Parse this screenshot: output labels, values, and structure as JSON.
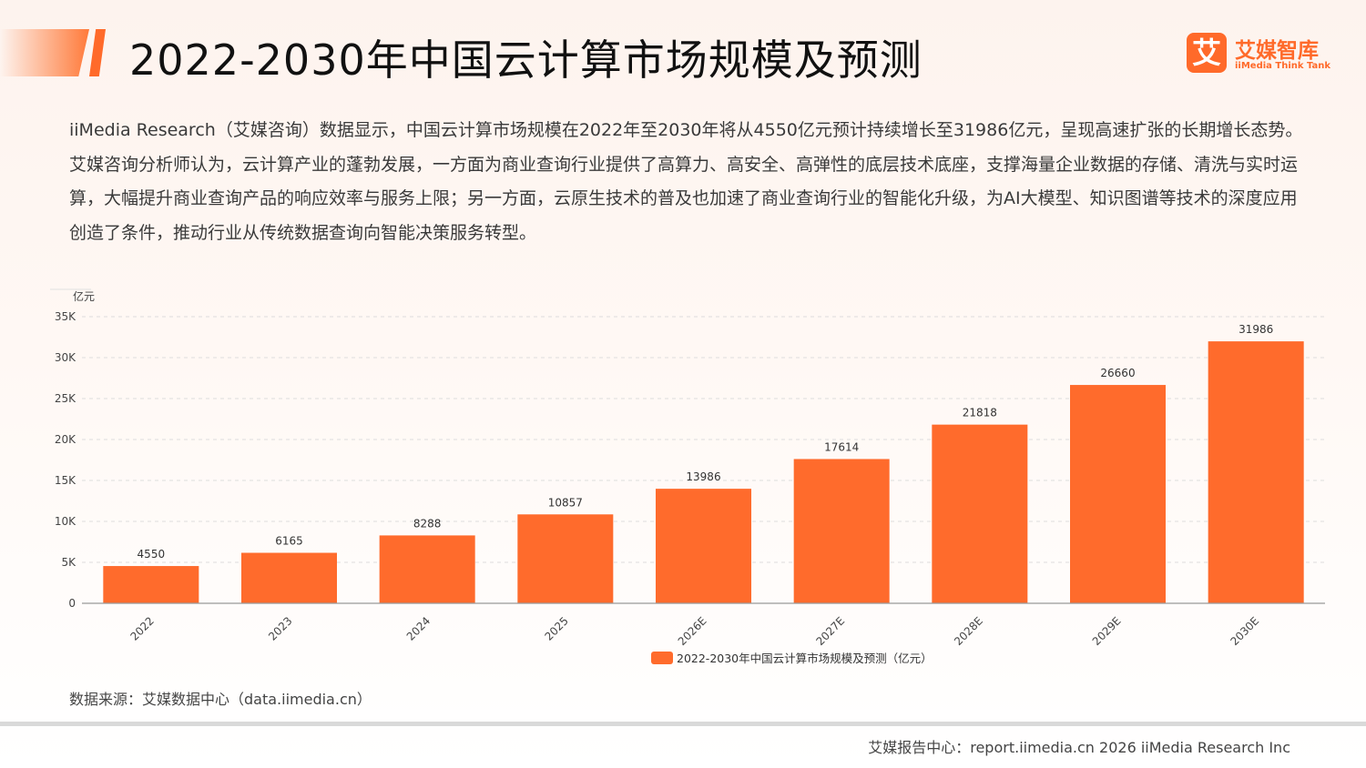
{
  "header": {
    "title": "2022-2030年中国云计算市场规模及预测",
    "logo_mark": "艾",
    "logo_cn": "艾媒智库",
    "logo_en": "iiMedia Think Tank"
  },
  "intro": "iiMedia Research（艾媒咨询）数据显示，中国云计算市场规模在2022年至2030年将从4550亿元预计持续增长至31986亿元，呈现高速扩张的长期增长态势。艾媒咨询分析师认为，云计算产业的蓬勃发展，一方面为商业查询行业提供了高算力、高安全、高弹性的底层技术底座，支撑海量企业数据的存储、清洗与实时运算，大幅提升商业查询产品的响应效率与服务上限；另一方面，云原生技术的普及也加速了商业查询行业的智能化升级，为AI大模型、知识图谱等技术的深度应用创造了条件，推动行业从传统数据查询向智能决策服务转型。",
  "chart_data": {
    "type": "bar",
    "categories": [
      "2022",
      "2023",
      "2024",
      "2025",
      "2026E",
      "2027E",
      "2028E",
      "2029E",
      "2030E"
    ],
    "series": [
      {
        "name": "2022-2030年中国云计算市场规模及预测（亿元）",
        "values": [
          4550,
          6165,
          8288,
          10857,
          13986,
          17614,
          21818,
          26660,
          31986
        ],
        "color": "#ff6b2c"
      }
    ],
    "ylabel": "亿元",
    "ylim": [
      0,
      35000
    ],
    "yticks": [
      0,
      5000,
      10000,
      15000,
      20000,
      25000,
      30000,
      35000
    ],
    "ytick_labels": [
      "0",
      "5K",
      "10K",
      "15K",
      "20K",
      "25K",
      "30K",
      "35K"
    ],
    "grid": true,
    "legend_position": "bottom-center",
    "data_labels": true
  },
  "footer": {
    "source": "数据来源：艾媒数据中心（data.iimedia.cn）",
    "copyright": "艾媒报告中心：report.iimedia.cn   2026 iiMedia Research Inc"
  },
  "colors": {
    "accent": "#ff6b2c",
    "grid": "#dddddd",
    "axis": "#999999"
  }
}
